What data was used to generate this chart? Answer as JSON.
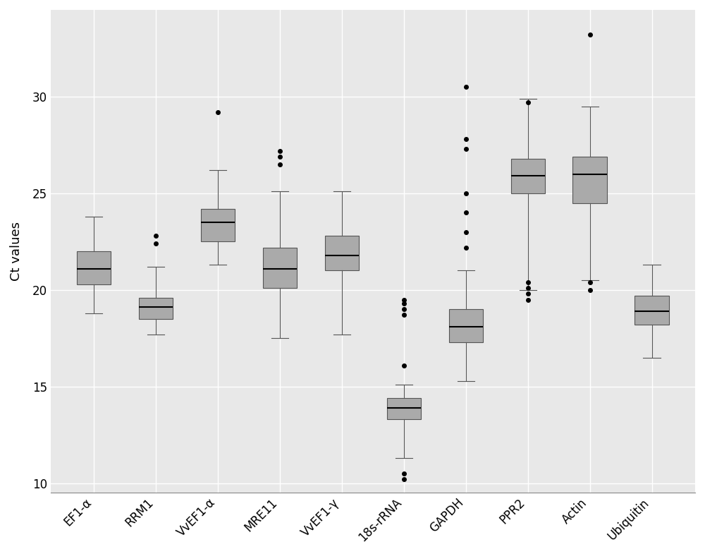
{
  "categories": [
    "EF1-α",
    "RRM1",
    "VvEF1-α",
    "MRE11",
    "VvEF1-γ",
    "18s-rRNA",
    "GAPDH",
    "PPR2",
    "Actin",
    "Ubiquitin"
  ],
  "ylabel": "Ct values",
  "ylim": [
    9.5,
    34.5
  ],
  "yticks": [
    10,
    15,
    20,
    25,
    30
  ],
  "background_color": "#e8e8e8",
  "box_color": "#aaaaaa",
  "box_edge_color": "#555555",
  "median_color": "#000000",
  "whisker_color": "#555555",
  "flier_color": "#000000",
  "grid_color": "#ffffff",
  "boxes": [
    {
      "q1": 20.3,
      "median": 21.1,
      "q3": 22.0,
      "whislo": 18.8,
      "whishi": 23.8,
      "fliers": []
    },
    {
      "q1": 18.5,
      "median": 19.1,
      "q3": 19.6,
      "whislo": 17.7,
      "whishi": 21.2,
      "fliers": [
        22.8,
        22.4
      ]
    },
    {
      "q1": 22.5,
      "median": 23.5,
      "q3": 24.2,
      "whislo": 21.3,
      "whishi": 26.2,
      "fliers": [
        29.2
      ]
    },
    {
      "q1": 20.1,
      "median": 21.1,
      "q3": 22.2,
      "whislo": 17.5,
      "whishi": 25.1,
      "fliers": [
        26.5,
        26.9,
        27.2
      ]
    },
    {
      "q1": 21.0,
      "median": 21.8,
      "q3": 22.8,
      "whislo": 17.7,
      "whishi": 25.1,
      "fliers": []
    },
    {
      "q1": 13.3,
      "median": 13.9,
      "q3": 14.4,
      "whislo": 11.3,
      "whishi": 15.1,
      "fliers": [
        10.2,
        10.5,
        16.1,
        18.7,
        19.0,
        19.3,
        19.5
      ]
    },
    {
      "q1": 17.3,
      "median": 18.1,
      "q3": 19.0,
      "whislo": 15.3,
      "whishi": 21.0,
      "fliers": [
        22.2,
        23.0,
        24.0,
        25.0,
        27.3,
        27.8,
        30.5
      ]
    },
    {
      "q1": 25.0,
      "median": 25.9,
      "q3": 26.8,
      "whislo": 20.0,
      "whishi": 29.9,
      "fliers": [
        19.5,
        19.8,
        20.1,
        20.4,
        29.7
      ]
    },
    {
      "q1": 24.5,
      "median": 26.0,
      "q3": 26.9,
      "whislo": 20.5,
      "whishi": 29.5,
      "fliers": [
        20.0,
        20.4,
        33.2
      ]
    },
    {
      "q1": 18.2,
      "median": 18.9,
      "q3": 19.7,
      "whislo": 16.5,
      "whishi": 21.3,
      "fliers": []
    }
  ]
}
